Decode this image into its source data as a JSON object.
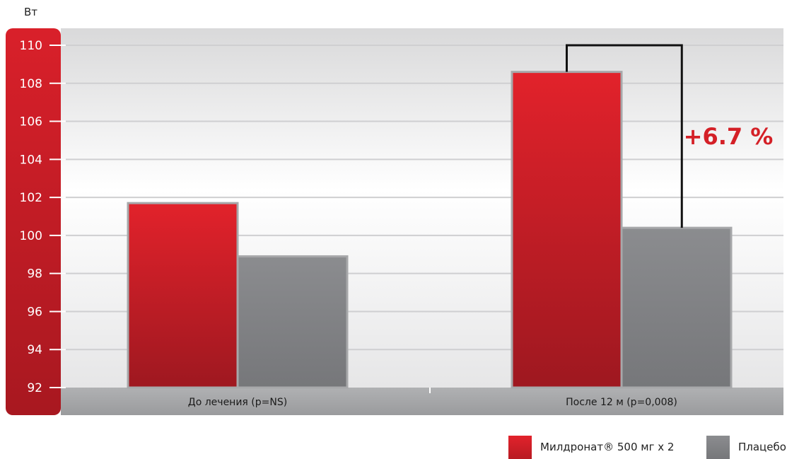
{
  "chart_data": {
    "type": "bar",
    "unit_label": "Вт",
    "categories": [
      "До лечения (p=NS)",
      "После 12 м (p=0,008)"
    ],
    "series": [
      {
        "name": "Милдронат® 500 мг х 2",
        "values": [
          101.7,
          108.6
        ],
        "color": "#d42027"
      },
      {
        "name": "Плацебо",
        "values": [
          98.9,
          100.4
        ],
        "color": "#8a8b8e"
      }
    ],
    "ylim": [
      92,
      110
    ],
    "yticks": [
      "110",
      "108",
      "106",
      "104",
      "102",
      "100",
      "98",
      "96",
      "94",
      "92"
    ],
    "grid": true,
    "legend_position": "bottom-right",
    "annotation": {
      "text": "+6.7 %",
      "category_index": 1,
      "color": "#d42027"
    }
  }
}
